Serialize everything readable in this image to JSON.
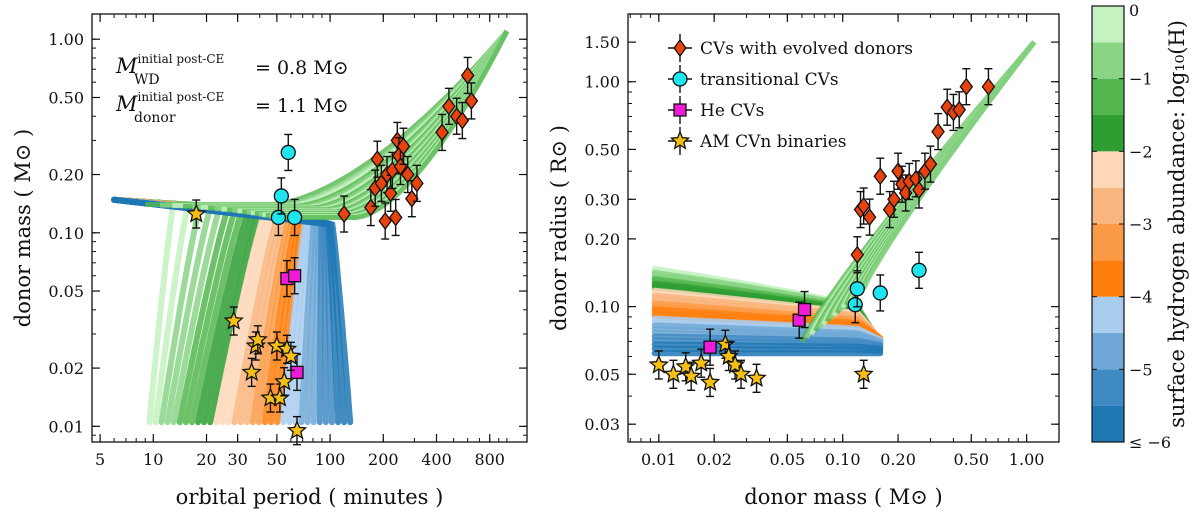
{
  "chart_data": [
    {
      "type": "scatter",
      "panel": "left",
      "xlabel": "orbital period ( minutes )",
      "ylabel": "donor mass ( M⊙ )",
      "xscale": "log",
      "yscale": "log",
      "xlim": [
        4.5,
        1300
      ],
      "ylim": [
        0.0083,
        1.35
      ],
      "xticks": [
        {
          "v": 5,
          "label": "5"
        },
        {
          "v": 10,
          "label": "10"
        },
        {
          "v": 20,
          "label": "20"
        },
        {
          "v": 30,
          "label": "30"
        },
        {
          "v": 50,
          "label": "50"
        },
        {
          "v": 100,
          "label": "100"
        },
        {
          "v": 200,
          "label": "200"
        },
        {
          "v": 400,
          "label": "400"
        },
        {
          "v": 800,
          "label": "800"
        }
      ],
      "yticks": [
        {
          "v": 0.01,
          "label": "0.01"
        },
        {
          "v": 0.02,
          "label": "0.02"
        },
        {
          "v": 0.05,
          "label": "0.05"
        },
        {
          "v": 0.1,
          "label": "0.10"
        },
        {
          "v": 0.2,
          "label": "0.20"
        },
        {
          "v": 0.5,
          "label": "0.50"
        },
        {
          "v": 1.0,
          "label": "1.00"
        }
      ],
      "annotations": {
        "line1_main": "M",
        "line1_sup": "initial post-CE",
        "line1_sub": "WD",
        "line1_rhs": "= 0.8 M⊙",
        "line2_main": "M",
        "line2_sup": "initial post-CE",
        "line2_sub": "donor",
        "line2_rhs": "= 1.1 M⊙"
      },
      "series": [
        {
          "name": "CVs with evolved donors",
          "marker": "diamond",
          "color": "#e8420e",
          "points": [
            [
              120,
              0.125
            ],
            [
              170,
              0.135
            ],
            [
              180,
              0.17
            ],
            [
              185,
              0.24
            ],
            [
              195,
              0.18
            ],
            [
              205,
              0.115
            ],
            [
              210,
              0.2
            ],
            [
              220,
              0.16
            ],
            [
              225,
              0.21
            ],
            [
              235,
              0.12
            ],
            [
              240,
              0.3
            ],
            [
              245,
              0.25
            ],
            [
              250,
              0.22
            ],
            [
              260,
              0.28
            ],
            [
              275,
              0.2
            ],
            [
              290,
              0.15
            ],
            [
              310,
              0.18
            ],
            [
              430,
              0.33
            ],
            [
              470,
              0.45
            ],
            [
              520,
              0.4
            ],
            [
              560,
              0.38
            ],
            [
              600,
              0.65
            ],
            [
              630,
              0.48
            ]
          ]
        },
        {
          "name": "transitional CVs",
          "marker": "circle",
          "color": "#1ee5ef",
          "points": [
            [
              51,
              0.12
            ],
            [
              53,
              0.155
            ],
            [
              58,
              0.26
            ],
            [
              63,
              0.12
            ]
          ]
        },
        {
          "name": "He CVs",
          "marker": "square",
          "color": "#f01ad8",
          "points": [
            [
              57,
              0.058
            ],
            [
              63,
              0.06
            ],
            [
              65,
              0.019
            ]
          ]
        },
        {
          "name": "AM CVn binaries",
          "marker": "star",
          "color": "#f5c016",
          "points": [
            [
              17.5,
              0.125
            ],
            [
              28.5,
              0.035
            ],
            [
              36,
              0.019
            ],
            [
              38,
              0.026
            ],
            [
              39,
              0.028
            ],
            [
              46,
              0.014
            ],
            [
              50,
              0.026
            ],
            [
              52,
              0.014
            ],
            [
              55,
              0.017
            ],
            [
              57,
              0.025
            ],
            [
              60,
              0.023
            ],
            [
              65,
              0.0095
            ]
          ]
        }
      ]
    },
    {
      "type": "scatter",
      "panel": "right",
      "xlabel": "donor mass ( M⊙ )",
      "ylabel": "donor radius ( R⊙ )",
      "xscale": "log",
      "yscale": "log",
      "xlim": [
        0.0068,
        1.5
      ],
      "ylim": [
        0.025,
        2.0
      ],
      "xticks": [
        {
          "v": 0.01,
          "label": "0.01"
        },
        {
          "v": 0.02,
          "label": "0.02"
        },
        {
          "v": 0.05,
          "label": "0.05"
        },
        {
          "v": 0.1,
          "label": "0.10"
        },
        {
          "v": 0.2,
          "label": "0.20"
        },
        {
          "v": 0.5,
          "label": "0.50"
        },
        {
          "v": 1.0,
          "label": "1.00"
        }
      ],
      "yticks": [
        {
          "v": 0.03,
          "label": "0.03"
        },
        {
          "v": 0.05,
          "label": "0.05"
        },
        {
          "v": 0.1,
          "label": "0.10"
        },
        {
          "v": 0.2,
          "label": "0.20"
        },
        {
          "v": 0.3,
          "label": "0.30"
        },
        {
          "v": 0.5,
          "label": "0.50"
        },
        {
          "v": 1.0,
          "label": "1.00"
        },
        {
          "v": 1.5,
          "label": "1.50"
        }
      ],
      "legend": {
        "position": "top-left",
        "entries": [
          {
            "label": "CVs with evolved donors",
            "marker": "diamond",
            "color": "#e8420e"
          },
          {
            "label": "transitional CVs",
            "marker": "circle",
            "color": "#1ee5ef"
          },
          {
            "label": "He CVs",
            "marker": "square",
            "color": "#f01ad8"
          },
          {
            "label": "AM CVn binaries",
            "marker": "star",
            "color": "#f5c016"
          }
        ]
      },
      "series": [
        {
          "name": "CVs with evolved donors",
          "marker": "diamond",
          "color": "#e8420e",
          "points": [
            [
              0.12,
              0.17
            ],
            [
              0.125,
              0.27
            ],
            [
              0.13,
              0.28
            ],
            [
              0.14,
              0.25
            ],
            [
              0.16,
              0.38
            ],
            [
              0.18,
              0.27
            ],
            [
              0.19,
              0.3
            ],
            [
              0.2,
              0.4
            ],
            [
              0.21,
              0.35
            ],
            [
              0.22,
              0.32
            ],
            [
              0.23,
              0.36
            ],
            [
              0.25,
              0.37
            ],
            [
              0.26,
              0.33
            ],
            [
              0.28,
              0.4
            ],
            [
              0.3,
              0.43
            ],
            [
              0.33,
              0.6
            ],
            [
              0.37,
              0.77
            ],
            [
              0.4,
              0.73
            ],
            [
              0.43,
              0.75
            ],
            [
              0.47,
              0.95
            ],
            [
              0.62,
              0.95
            ]
          ]
        },
        {
          "name": "transitional CVs",
          "marker": "circle",
          "color": "#1ee5ef",
          "points": [
            [
              0.117,
              0.102
            ],
            [
              0.12,
              0.12
            ],
            [
              0.16,
              0.115
            ],
            [
              0.26,
              0.145
            ]
          ]
        },
        {
          "name": "He CVs",
          "marker": "square",
          "color": "#f01ad8",
          "points": [
            [
              0.019,
              0.066
            ],
            [
              0.058,
              0.087
            ],
            [
              0.062,
              0.097
            ]
          ]
        },
        {
          "name": "AM CVn binaries",
          "marker": "star",
          "color": "#f5c016",
          "points": [
            [
              0.01,
              0.055
            ],
            [
              0.012,
              0.05
            ],
            [
              0.014,
              0.054
            ],
            [
              0.015,
              0.049
            ],
            [
              0.017,
              0.056
            ],
            [
              0.019,
              0.046
            ],
            [
              0.023,
              0.068
            ],
            [
              0.024,
              0.06
            ],
            [
              0.026,
              0.055
            ],
            [
              0.028,
              0.05
            ],
            [
              0.034,
              0.048
            ],
            [
              0.13,
              0.05
            ]
          ]
        }
      ]
    }
  ],
  "colorbar": {
    "label": "surface hydrogen abundance: log₁₀(H)",
    "ticks": [
      {
        "v": 0,
        "label": "0"
      },
      {
        "v": -1,
        "label": "−1"
      },
      {
        "v": -2,
        "label": "−2"
      },
      {
        "v": -3,
        "label": "−3"
      },
      {
        "v": -4,
        "label": "−4"
      },
      {
        "v": -5,
        "label": "−5"
      },
      {
        "v": -6,
        "label": "≤ −6"
      }
    ],
    "range": [
      -6,
      0
    ],
    "bins": [
      {
        "from": -6.0,
        "to": -5.5,
        "color": "#1f77b4"
      },
      {
        "from": -5.5,
        "to": -5.0,
        "color": "#3f8ac2"
      },
      {
        "from": -5.0,
        "to": -4.5,
        "color": "#6fa8d6"
      },
      {
        "from": -4.5,
        "to": -4.0,
        "color": "#a9cdee"
      },
      {
        "from": -4.0,
        "to": -3.5,
        "color": "#ff7f0e"
      },
      {
        "from": -3.5,
        "to": -3.0,
        "color": "#fb9a45"
      },
      {
        "from": -3.0,
        "to": -2.5,
        "color": "#f9b57e"
      },
      {
        "from": -2.5,
        "to": -2.0,
        "color": "#fdd7b6"
      },
      {
        "from": -2.0,
        "to": -1.5,
        "color": "#2e9e33"
      },
      {
        "from": -1.5,
        "to": -1.0,
        "color": "#54b64f"
      },
      {
        "from": -1.0,
        "to": -0.5,
        "color": "#8ad486"
      },
      {
        "from": -0.5,
        "to": 0.0,
        "color": "#c4f2c0"
      }
    ]
  }
}
